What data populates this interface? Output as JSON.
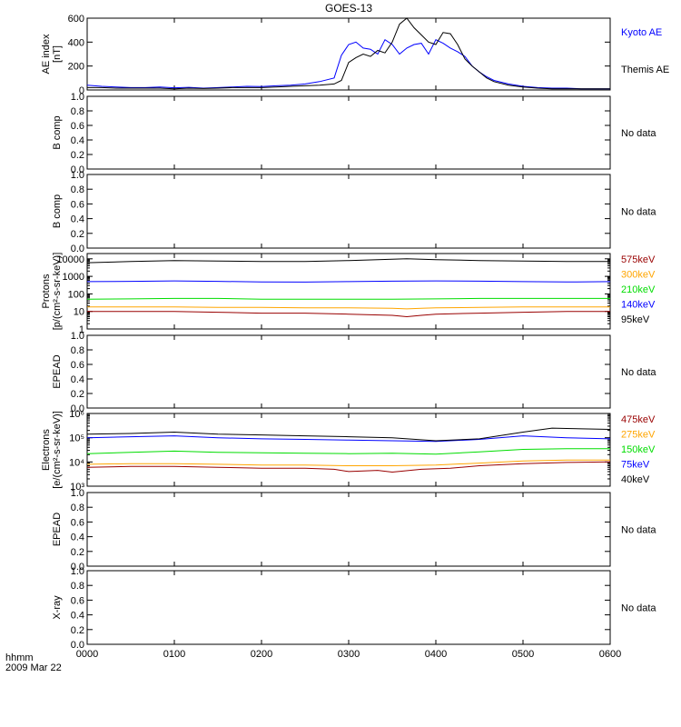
{
  "title": "GOES-13",
  "footer": {
    "time_label": "hhmm",
    "date_label": "2009 Mar 22"
  },
  "colors": {
    "black": "#000000",
    "blue": "#0000ff",
    "green": "#00dd00",
    "orange": "#ffa500",
    "darkred": "#990000",
    "axis": "#000000"
  },
  "chart_data": [
    {
      "id": "ae",
      "type": "line",
      "ylabel": [
        "AE index",
        "[nT]"
      ],
      "ylim": [
        0,
        600
      ],
      "yticks": [
        0,
        200,
        400,
        600
      ],
      "ytick_labels": [
        "0",
        "200",
        "400",
        "600"
      ],
      "xlim": [
        0,
        360
      ],
      "series": [
        {
          "name": "Kyoto AE",
          "color": "#0000ff",
          "x": [
            0,
            10,
            20,
            30,
            40,
            50,
            60,
            70,
            80,
            90,
            100,
            110,
            120,
            130,
            140,
            150,
            160,
            170,
            175,
            180,
            185,
            190,
            195,
            200,
            205,
            210,
            215,
            220,
            225,
            230,
            235,
            240,
            245,
            250,
            255,
            260,
            265,
            270,
            275,
            280,
            290,
            300,
            310,
            320,
            330,
            340,
            350,
            360
          ],
          "y": [
            40,
            30,
            25,
            20,
            20,
            25,
            18,
            22,
            15,
            20,
            25,
            30,
            28,
            35,
            40,
            50,
            70,
            100,
            290,
            380,
            400,
            350,
            340,
            300,
            420,
            380,
            300,
            350,
            380,
            390,
            300,
            420,
            390,
            350,
            320,
            280,
            200,
            150,
            110,
            80,
            50,
            30,
            20,
            15,
            15,
            10,
            10,
            10
          ]
        },
        {
          "name": "Themis AE",
          "color": "#000000",
          "x": [
            0,
            10,
            20,
            30,
            40,
            50,
            60,
            70,
            80,
            90,
            100,
            110,
            120,
            130,
            140,
            150,
            160,
            170,
            175,
            180,
            185,
            190,
            195,
            200,
            205,
            210,
            215,
            220,
            225,
            230,
            235,
            240,
            245,
            250,
            255,
            260,
            265,
            270,
            275,
            280,
            290,
            300,
            310,
            320,
            330,
            340,
            350,
            360
          ],
          "y": [
            20,
            20,
            15,
            15,
            15,
            15,
            10,
            15,
            12,
            15,
            20,
            20,
            20,
            25,
            30,
            35,
            40,
            50,
            80,
            230,
            270,
            300,
            280,
            330,
            310,
            400,
            550,
            600,
            520,
            460,
            400,
            380,
            480,
            470,
            380,
            260,
            200,
            150,
            100,
            70,
            40,
            25,
            15,
            10,
            10,
            10,
            10,
            10
          ]
        }
      ]
    },
    {
      "id": "b1",
      "type": "line",
      "ylabel": [
        "B comp"
      ],
      "ylim": [
        0,
        1
      ],
      "yticks": [
        0,
        0.2,
        0.4,
        0.6,
        0.8,
        1.0
      ],
      "ytick_labels": [
        "0.0",
        "0.2",
        "0.4",
        "0.6",
        "0.8",
        "1.0"
      ],
      "status": "No data"
    },
    {
      "id": "b2",
      "type": "line",
      "ylabel": [
        "B comp"
      ],
      "ylim": [
        0,
        1
      ],
      "yticks": [
        0,
        0.2,
        0.4,
        0.6,
        0.8,
        1.0
      ],
      "ytick_labels": [
        "0.0",
        "0.2",
        "0.4",
        "0.6",
        "0.8",
        "1.0"
      ],
      "status": "No data"
    },
    {
      "id": "protons",
      "type": "line",
      "scale": "log",
      "ylabel": [
        "Protons",
        "[p/(cm²-s-sr-keV)]"
      ],
      "ylim": [
        1,
        20000
      ],
      "yticks": [
        1,
        10,
        100,
        1000,
        10000
      ],
      "ytick_labels": [
        "1",
        "10",
        "100",
        "1000",
        "10000"
      ],
      "xlim": [
        0,
        360
      ],
      "series": [
        {
          "name": "575keV",
          "color": "#990000",
          "x": [
            0,
            30,
            60,
            90,
            120,
            150,
            180,
            210,
            220,
            230,
            240,
            270,
            300,
            330,
            360
          ],
          "y": [
            10,
            10,
            10,
            9,
            8,
            8,
            7,
            6,
            5,
            6,
            7,
            8,
            9,
            10,
            10
          ]
        },
        {
          "name": "300keV",
          "color": "#ffa500",
          "x": [
            0,
            30,
            60,
            90,
            120,
            150,
            180,
            210,
            220,
            230,
            240,
            270,
            300,
            330,
            360
          ],
          "y": [
            18,
            18,
            18,
            17,
            17,
            16,
            16,
            15,
            14,
            15,
            16,
            17,
            18,
            18,
            18
          ]
        },
        {
          "name": "210keV",
          "color": "#00dd00",
          "x": [
            0,
            30,
            60,
            90,
            120,
            150,
            180,
            210,
            240,
            270,
            300,
            330,
            360
          ],
          "y": [
            50,
            52,
            55,
            55,
            50,
            50,
            50,
            50,
            52,
            55,
            55,
            55,
            55
          ]
        },
        {
          "name": "140keV",
          "color": "#0000ff",
          "x": [
            0,
            30,
            60,
            90,
            120,
            150,
            180,
            210,
            240,
            270,
            300,
            330,
            360
          ],
          "y": [
            500,
            520,
            550,
            520,
            480,
            470,
            500,
            530,
            550,
            530,
            500,
            480,
            500
          ]
        },
        {
          "name": "95keV",
          "color": "#000000",
          "x": [
            0,
            30,
            60,
            90,
            120,
            150,
            180,
            210,
            220,
            240,
            270,
            300,
            330,
            360
          ],
          "y": [
            6000,
            7000,
            8000,
            7500,
            7000,
            7000,
            8000,
            9500,
            10000,
            9000,
            8000,
            7500,
            7000,
            7000
          ]
        }
      ]
    },
    {
      "id": "epead1",
      "type": "line",
      "ylabel": [
        "EPEAD"
      ],
      "ylim": [
        0,
        1
      ],
      "yticks": [
        0,
        0.2,
        0.4,
        0.6,
        0.8,
        1.0
      ],
      "ytick_labels": [
        "0.0",
        "0.2",
        "0.4",
        "0.6",
        "0.8",
        "1.0"
      ],
      "status": "No data"
    },
    {
      "id": "electrons",
      "type": "line",
      "scale": "log",
      "ylabel": [
        "Electrons",
        "[e/(cm²-s-sr-keV)]"
      ],
      "ylim": [
        1000,
        1000000
      ],
      "yticks": [
        1000,
        10000,
        100000,
        1000000
      ],
      "ytick_labels": [
        "10³",
        "10⁴",
        "10⁵",
        "10⁶"
      ],
      "xlim": [
        0,
        360
      ],
      "series": [
        {
          "name": "475keV",
          "color": "#990000",
          "x": [
            0,
            30,
            60,
            90,
            120,
            150,
            170,
            180,
            200,
            210,
            230,
            250,
            270,
            300,
            330,
            360
          ],
          "y": [
            6000,
            6500,
            6500,
            6000,
            5500,
            5500,
            5000,
            4000,
            4500,
            3800,
            5000,
            5500,
            7000,
            8500,
            9500,
            10000
          ]
        },
        {
          "name": "275keV",
          "color": "#ffa500",
          "x": [
            0,
            30,
            60,
            90,
            120,
            150,
            180,
            210,
            240,
            270,
            300,
            330,
            360
          ],
          "y": [
            8000,
            8500,
            8500,
            8000,
            7500,
            7500,
            7000,
            7000,
            7500,
            9000,
            11000,
            12000,
            12000
          ]
        },
        {
          "name": "150keV",
          "color": "#00dd00",
          "x": [
            0,
            30,
            60,
            90,
            120,
            150,
            180,
            210,
            240,
            270,
            300,
            330,
            360
          ],
          "y": [
            22000,
            25000,
            28000,
            25000,
            24000,
            23000,
            22000,
            23000,
            21000,
            26000,
            33000,
            35000,
            35000
          ]
        },
        {
          "name": "75keV",
          "color": "#0000ff",
          "x": [
            0,
            30,
            60,
            90,
            120,
            150,
            180,
            210,
            240,
            270,
            300,
            330,
            360
          ],
          "y": [
            100000,
            110000,
            120000,
            100000,
            90000,
            85000,
            80000,
            75000,
            70000,
            85000,
            120000,
            100000,
            90000
          ]
        },
        {
          "name": "40keV",
          "color": "#000000",
          "x": [
            0,
            30,
            60,
            90,
            120,
            150,
            180,
            210,
            240,
            270,
            300,
            320,
            330,
            360
          ],
          "y": [
            140000,
            150000,
            170000,
            140000,
            130000,
            120000,
            110000,
            100000,
            75000,
            90000,
            170000,
            250000,
            240000,
            220000
          ]
        }
      ]
    },
    {
      "id": "epead2",
      "type": "line",
      "ylabel": [
        "EPEAD"
      ],
      "ylim": [
        0,
        1
      ],
      "yticks": [
        0,
        0.2,
        0.4,
        0.6,
        0.8,
        1.0
      ],
      "ytick_labels": [
        "0.0",
        "0.2",
        "0.4",
        "0.6",
        "0.8",
        "1.0"
      ],
      "status": "No data"
    },
    {
      "id": "xray",
      "type": "line",
      "ylabel": [
        "X-ray"
      ],
      "ylim": [
        0,
        1
      ],
      "yticks": [
        0,
        0.2,
        0.4,
        0.6,
        0.8,
        1.0
      ],
      "ytick_labels": [
        "0.0",
        "0.2",
        "0.4",
        "0.6",
        "0.8",
        "1.0"
      ],
      "status": "No data"
    }
  ],
  "x_axis": {
    "ticks": [
      0,
      60,
      120,
      180,
      240,
      300,
      360
    ],
    "tick_labels": [
      "0000",
      "0100",
      "0200",
      "0300",
      "0400",
      "0500",
      "0600"
    ]
  }
}
